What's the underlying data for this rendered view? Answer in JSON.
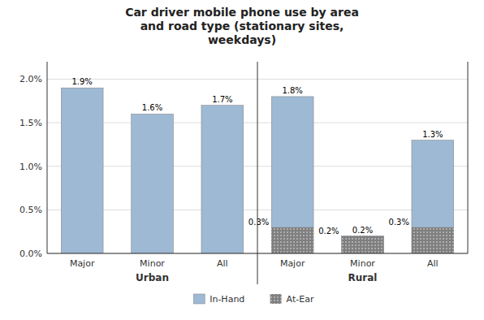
{
  "chart_data": {
    "type": "bar",
    "title": "Car driver mobile phone use by area\nand road type (stationary sites,\nweekdays)",
    "categories": [
      "Major",
      "Minor",
      "All",
      "Major",
      "Minor",
      "All"
    ],
    "groups": [
      "Urban",
      "Urban",
      "Urban",
      "Rural",
      "Rural",
      "Rural"
    ],
    "series": [
      {
        "name": "In-Hand",
        "color": "#9EB9D4",
        "values": [
          1.9,
          1.6,
          1.7,
          1.8,
          0.2,
          1.3
        ],
        "value_labels": [
          "1.9%",
          "1.6%",
          "1.7%",
          "1.8%",
          "0.2%",
          "1.3%"
        ]
      },
      {
        "name": "At-Ear",
        "color": "#7F7F7F",
        "values": [
          0.0,
          0.0,
          0.0,
          0.3,
          0.2,
          0.3
        ],
        "value_labels": [
          null,
          null,
          null,
          "0.3%",
          "0.2%",
          "0.3%"
        ]
      }
    ],
    "ylim": [
      0,
      2.2
    ],
    "yticks": [
      {
        "value": 0.0,
        "label": "0.0%"
      },
      {
        "value": 0.5,
        "label": "0.5%"
      },
      {
        "value": 1.0,
        "label": "1.0%"
      },
      {
        "value": 1.5,
        "label": "1.5%"
      },
      {
        "value": 2.0,
        "label": "2.0%"
      }
    ],
    "grid": true,
    "legend": "bottom",
    "data_labels": true
  }
}
